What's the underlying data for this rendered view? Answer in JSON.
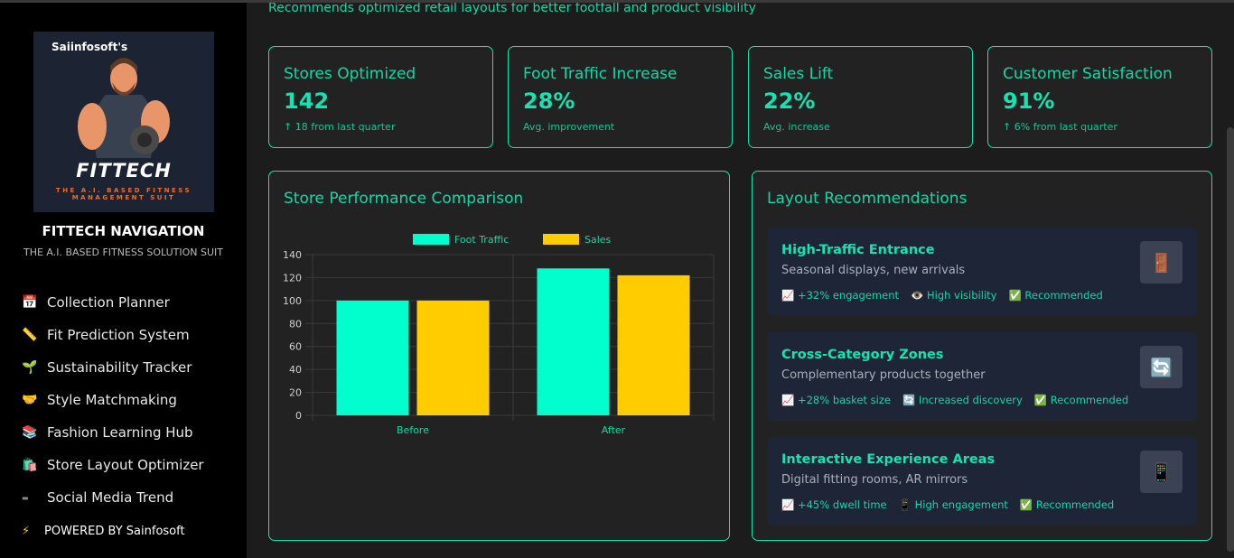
{
  "sidebar": {
    "logo_brand": "Saiinfosoft's",
    "logo_title": "FITTECH",
    "logo_subtitle": "THE A.I. BASED FITNESS MANAGEMENT SUIT",
    "nav_title": "FITTECH NAVIGATION",
    "nav_subtitle": "THE A.I. BASED FITNESS SOLUTION SUIT",
    "items": [
      {
        "icon": "📅",
        "label": "Collection Planner"
      },
      {
        "icon": "📏",
        "label": "Fit Prediction System"
      },
      {
        "icon": "🌱",
        "label": "Sustainability Tracker"
      },
      {
        "icon": "🤝",
        "label": "Style Matchmaking"
      },
      {
        "icon": "📚",
        "label": "Fashion Learning Hub"
      },
      {
        "icon": "🛍️",
        "label": "Store Layout Optimizer"
      },
      {
        "icon": "▬",
        "label": "Social Media Trend"
      }
    ],
    "powered_icon": "⚡",
    "powered": "POWERED BY Sainfosoft"
  },
  "main": {
    "subtitle": "Recommends optimized retail layouts for better footfall and product visibility",
    "stats": [
      {
        "label": "Stores Optimized",
        "value": "142",
        "note": "↑ 18 from last quarter"
      },
      {
        "label": "Foot Traffic Increase",
        "value": "28%",
        "note": "Avg. improvement"
      },
      {
        "label": "Sales Lift",
        "value": "22%",
        "note": "Avg. increase"
      },
      {
        "label": "Customer Satisfaction",
        "value": "91%",
        "note": "↑ 6% from last quarter"
      }
    ],
    "chart_title": "Store Performance Comparison",
    "recs_title": "Layout Recommendations",
    "recs": [
      {
        "title": "High-Traffic Entrance",
        "desc": "Seasonal displays, new arrivals",
        "icon": "🚪",
        "tags": [
          "📈 +32% engagement",
          "👁️ High visibility",
          "✅ Recommended"
        ]
      },
      {
        "title": "Cross-Category Zones",
        "desc": "Complementary products together",
        "icon": "🔄",
        "tags": [
          "📈 +28% basket size",
          "🔄 Increased discovery",
          "✅ Recommended"
        ]
      },
      {
        "title": "Interactive Experience Areas",
        "desc": "Digital fitting rooms, AR mirrors",
        "icon": "📱",
        "tags": [
          "📈 +45% dwell time",
          "📱 High engagement",
          "✅ Recommended"
        ]
      }
    ]
  },
  "chart_data": {
    "type": "bar",
    "title": "Store Performance Comparison",
    "categories": [
      "Before",
      "After"
    ],
    "series": [
      {
        "name": "Foot Traffic",
        "values": [
          100,
          128
        ],
        "color": "#00ffcc"
      },
      {
        "name": "Sales",
        "values": [
          100,
          122
        ],
        "color": "#ffcc00"
      }
    ],
    "ylim": [
      0,
      140
    ],
    "yticks": [
      0,
      20,
      40,
      60,
      80,
      100,
      120,
      140
    ],
    "legend": "top-center",
    "grid": true
  }
}
